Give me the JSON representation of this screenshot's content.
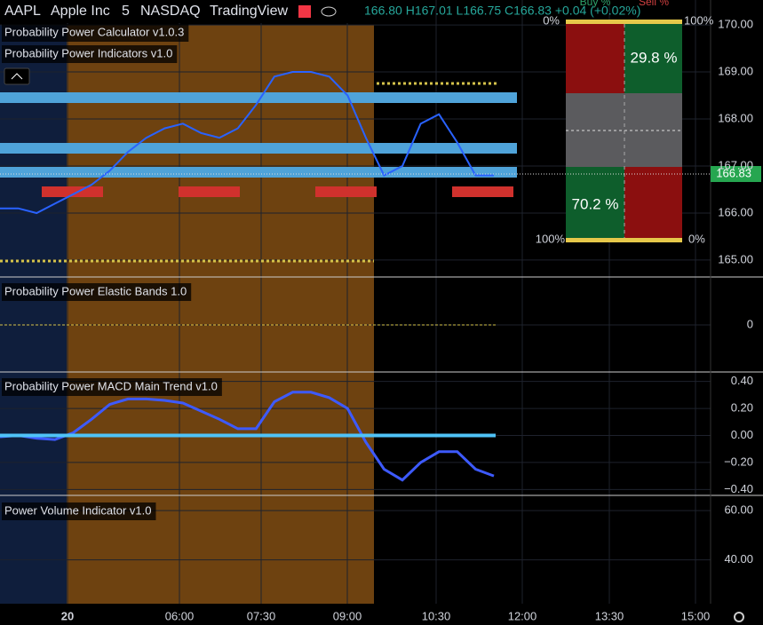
{
  "header": {
    "symbol": "AAPL",
    "name": "Apple Inc",
    "interval": "5",
    "exchange": "NASDAQ",
    "source": "TradingView",
    "ohlc": "166.80 H167.01 L166.75 C166.83 +0.04 (+0.02%)",
    "buy_label": "Buy %",
    "sell_label": "Sell %"
  },
  "main": {
    "labels": [
      "Probability Power Calculator v1.0.3",
      "Probability Power Indicators v1.0"
    ],
    "ylim": [
      164.64,
      170.53
    ],
    "yticks": [
      {
        "value": 170,
        "label": "170.00"
      },
      {
        "value": 169,
        "label": "169.00"
      },
      {
        "value": 168,
        "label": "168.00"
      },
      {
        "value": 167,
        "label": "167.00"
      },
      {
        "value": 166,
        "label": "166.00"
      },
      {
        "value": 165,
        "label": "165.00"
      }
    ],
    "current_price": 166.83,
    "price": {
      "name": "Price",
      "color": "#2962ff",
      "values": [
        166.1,
        166.1,
        166.0,
        166.2,
        166.4,
        166.6,
        166.9,
        167.3,
        167.6,
        167.8,
        167.9,
        167.7,
        167.6,
        167.8,
        168.3,
        168.9,
        169.0,
        169.0,
        168.9,
        168.5,
        167.6,
        166.8,
        167.0,
        167.9,
        168.1,
        167.5,
        166.8,
        166.8
      ]
    },
    "probability": {
      "sell": "29.8 %",
      "buy": "70.2 %",
      "top_left": "0%",
      "top_right": "100%",
      "bottom_left": "100%",
      "bottom_right": "0%"
    }
  },
  "elastic": {
    "label": "Probability Power Elastic Bands 1.0",
    "ylim": [
      -1,
      1
    ],
    "yticks": [
      {
        "value": 0,
        "label": "0"
      }
    ]
  },
  "macd": {
    "label": "Probability Power MACD Main Trend v1.0",
    "ylim": [
      -0.4437,
      0.4636
    ],
    "yticks": [
      {
        "value": 0.4,
        "label": "0.40"
      },
      {
        "value": 0.2,
        "label": "0.20"
      },
      {
        "value": 0,
        "label": "0.00"
      },
      {
        "value": -0.2,
        "label": "−0.20"
      },
      {
        "value": -0.4,
        "label": "−0.40"
      }
    ],
    "line": {
      "name": "MACD",
      "color": "#3d5afe",
      "values": [
        -0.01,
        0.0,
        -0.02,
        -0.03,
        0.02,
        0.12,
        0.23,
        0.27,
        0.27,
        0.26,
        0.24,
        0.18,
        0.12,
        0.05,
        0.05,
        0.25,
        0.32,
        0.32,
        0.28,
        0.2,
        -0.05,
        -0.25,
        -0.33,
        -0.2,
        -0.12,
        -0.12,
        -0.25,
        -0.3
      ]
    }
  },
  "volume": {
    "label": "Power Volume Indicator v1.0",
    "ylim": [
      22.18,
      65.82
    ],
    "yticks": [
      {
        "value": 60,
        "label": "60.00"
      },
      {
        "value": 40,
        "label": "40.00"
      }
    ]
  },
  "time_axis": [
    "20",
    "06:00",
    "07:30",
    "09:00",
    "10:30",
    "12:00",
    "13:30",
    "15:00"
  ]
}
